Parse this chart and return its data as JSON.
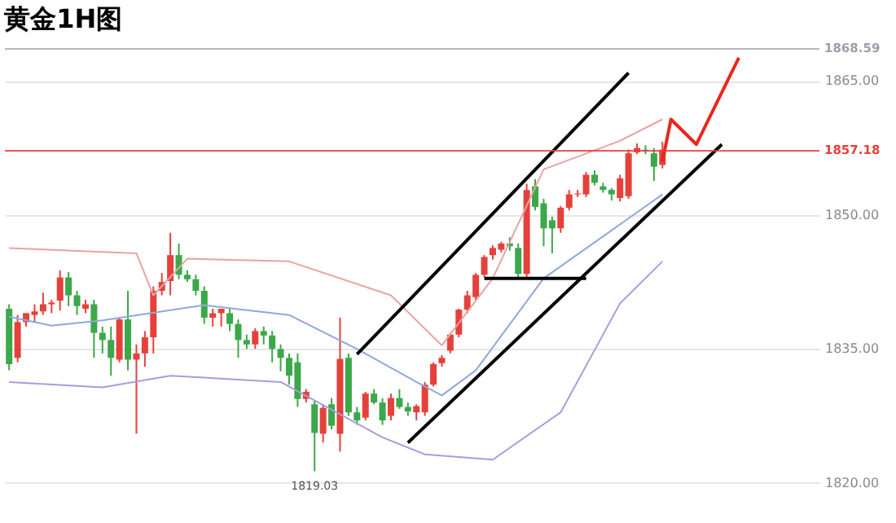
{
  "chart_data": {
    "type": "candlestick",
    "title": "黄金1H图",
    "categories": [
      null,
      null,
      null,
      null,
      null,
      null,
      null,
      null,
      null,
      null,
      null,
      null,
      null,
      null,
      null,
      null,
      null,
      null,
      null,
      null,
      null,
      null,
      null,
      null,
      null,
      null,
      null,
      null,
      null,
      null,
      null,
      null,
      null,
      null,
      null,
      null,
      null,
      null,
      null,
      null,
      null,
      null,
      null,
      null,
      null,
      null,
      null,
      null,
      null,
      null,
      null,
      null,
      null,
      null,
      null,
      null,
      null,
      null,
      null,
      null,
      null,
      null,
      null,
      null,
      null,
      null,
      null,
      null,
      null,
      null,
      null,
      null,
      null,
      null,
      null,
      null,
      null,
      null,
      null,
      null,
      null,
      null,
      null,
      null,
      null,
      null,
      null,
      null,
      null,
      null,
      null,
      null,
      null,
      null,
      null,
      null
    ],
    "ohlc": [
      [
        1839.5,
        1840,
        1832.6,
        1833.3
      ],
      [
        1834,
        1838.8,
        1833.5,
        1838
      ],
      [
        1838,
        1839,
        1837.5,
        1839
      ],
      [
        1838.8,
        1840,
        1838,
        1839.2
      ],
      [
        1839.2,
        1841.3,
        1838.8,
        1840
      ],
      [
        1840,
        1840.5,
        1839,
        1840.2
      ],
      [
        1840.4,
        1843.8,
        1839.3,
        1843
      ],
      [
        1843,
        1843.6,
        1839.8,
        1841
      ],
      [
        1841,
        1841.5,
        1838.8,
        1839.8
      ],
      [
        1839.5,
        1840.5,
        1839,
        1840
      ],
      [
        1840,
        1840.5,
        1834,
        1836.8
      ],
      [
        1836.8,
        1837.5,
        1834.5,
        1836
      ],
      [
        1836,
        1837.5,
        1832,
        1834
      ],
      [
        1833.8,
        1838.5,
        1833.5,
        1838.3
      ],
      [
        1838.3,
        1841.5,
        1832.6,
        1833.8
      ],
      [
        1833.8,
        1835.5,
        1825.5,
        1834.5
      ],
      [
        1834.5,
        1837,
        1833,
        1836.3
      ],
      [
        1836.3,
        1842,
        1834.5,
        1841.5
      ],
      [
        1841.5,
        1843.5,
        1841,
        1842.5
      ],
      [
        1842.6,
        1848,
        1841,
        1845.5
      ],
      [
        1845.5,
        1846.8,
        1842.8,
        1843.3
      ],
      [
        1843.3,
        1843.8,
        1842.5,
        1842.8
      ],
      [
        1842.8,
        1843.3,
        1841,
        1841.5
      ],
      [
        1841.5,
        1842,
        1837.8,
        1838.5
      ],
      [
        1838.5,
        1839.5,
        1837.5,
        1839
      ],
      [
        1839,
        1839.5,
        1837.5,
        1839.5
      ],
      [
        1839,
        1839.6,
        1837,
        1837.8
      ],
      [
        1837.8,
        1838.3,
        1834,
        1836
      ],
      [
        1836,
        1836.6,
        1835,
        1835.5
      ],
      [
        1835.5,
        1837.3,
        1835,
        1837
      ],
      [
        1837,
        1837.5,
        1835.5,
        1836.5
      ],
      [
        1836.5,
        1837,
        1833.5,
        1835
      ],
      [
        1835,
        1835.5,
        1832.5,
        1834
      ],
      [
        1834,
        1834.5,
        1831,
        1832
      ],
      [
        1833.5,
        1834.5,
        1828.5,
        1829.4
      ],
      [
        1829.4,
        1830.5,
        1829,
        1830.2
      ],
      [
        1828.8,
        1829.2,
        1821.3,
        1825.6
      ],
      [
        1825.5,
        1828.8,
        1824.5,
        1828.4
      ],
      [
        1828.8,
        1829.5,
        1826,
        1826.4
      ],
      [
        1825.5,
        1838.5,
        1823.5,
        1833.9
      ],
      [
        1834,
        1834.5,
        1827.5,
        1827.9
      ],
      [
        1827.9,
        1828.5,
        1826.5,
        1827
      ],
      [
        1827.3,
        1830.2,
        1827,
        1830
      ],
      [
        1830,
        1830.5,
        1828.8,
        1829
      ],
      [
        1829,
        1829.5,
        1826.5,
        1827
      ],
      [
        1827.5,
        1830,
        1827,
        1829.5
      ],
      [
        1829.5,
        1830.5,
        1828.3,
        1828.5
      ],
      [
        1828.5,
        1829,
        1827.5,
        1828
      ],
      [
        1827.9,
        1828.8,
        1827,
        1828.6
      ],
      [
        1827.9,
        1831.3,
        1827.5,
        1831
      ],
      [
        1831,
        1833.5,
        1830.8,
        1833.3
      ],
      [
        1833.4,
        1834.3,
        1833,
        1834
      ],
      [
        1834.8,
        1836.8,
        1834.5,
        1836.6
      ],
      [
        1836.6,
        1839.5,
        1836.3,
        1839.4
      ],
      [
        1839.4,
        1841.5,
        1839,
        1841
      ],
      [
        1840.8,
        1843.5,
        1840.5,
        1843.3
      ],
      [
        1843.3,
        1845.5,
        1843,
        1845.3
      ],
      [
        1845.5,
        1846.6,
        1845,
        1846.3
      ],
      [
        1846.1,
        1847,
        1845.8,
        1846.8
      ],
      [
        1846.8,
        1847.5,
        1846,
        1846.5
      ],
      [
        1846.3,
        1846.8,
        1843,
        1843.4
      ],
      [
        1843.4,
        1853.5,
        1843,
        1852.8
      ],
      [
        1853.2,
        1854,
        1850.5,
        1850.9
      ],
      [
        1851.3,
        1851.8,
        1846.5,
        1848.5
      ],
      [
        1849.4,
        1849.8,
        1845.7,
        1848.5
      ],
      [
        1848.5,
        1851,
        1848,
        1850.8
      ],
      [
        1850.8,
        1852.8,
        1850.5,
        1852.3
      ],
      [
        1852.3,
        1852.8,
        1852,
        1852.4
      ],
      [
        1852.3,
        1854.8,
        1852,
        1854.5
      ],
      [
        1854.5,
        1855,
        1853.3,
        1853.6
      ],
      [
        1853.2,
        1853.6,
        1852.5,
        1852.8
      ],
      [
        1852.8,
        1853,
        1851.6,
        1852.3
      ],
      [
        1851.9,
        1854.5,
        1851.5,
        1854.1
      ],
      [
        1852.1,
        1857.3,
        1851.8,
        1856.9
      ],
      [
        1857,
        1858,
        1856.8,
        1857.5
      ],
      [
        1857.3,
        1857.8,
        1856.8,
        1857.2
      ],
      [
        1856.9,
        1857.5,
        1853.8,
        1855.4
      ],
      [
        1855.6,
        1858.2,
        1855.2,
        1857.3
      ],
      null,
      null,
      null,
      null,
      null,
      null,
      null,
      null,
      null,
      null,
      null,
      null,
      null,
      null,
      null,
      null,
      null,
      null
    ],
    "colors": [
      "#3ba84a",
      "#e5413b",
      "#e5413b",
      "#e5413b",
      "#e5413b",
      "#e5413b",
      "#e5413b",
      "#3ba84a",
      "#3ba84a",
      "#e5413b",
      "#3ba84a",
      "#3ba84a",
      "#3ba84a",
      "#e5413b",
      "#3ba84a",
      "#e5413b",
      "#e5413b",
      "#e5413b",
      "#e5413b",
      "#e5413b",
      "#3ba84a",
      "#3ba84a",
      "#3ba84a",
      "#3ba84a",
      "#e5413b",
      "#e5413b",
      "#3ba84a",
      "#3ba84a",
      "#3ba84a",
      "#e5413b",
      "#3ba84a",
      "#3ba84a",
      "#3ba84a",
      "#3ba84a",
      "#3ba84a",
      "#e5413b",
      "#3ba84a",
      "#e5413b",
      "#3ba84a",
      "#e5413b",
      "#3ba84a",
      "#3ba84a",
      "#e5413b",
      "#3ba84a",
      "#3ba84a",
      "#e5413b",
      "#3ba84a",
      "#3ba84a",
      "#e5413b",
      "#e5413b",
      "#e5413b",
      "#e5413b",
      "#e5413b",
      "#e5413b",
      "#e5413b",
      "#e5413b",
      "#e5413b",
      "#e5413b",
      "#e5413b",
      "#3ba84a",
      "#3ba84a",
      "#e5413b",
      "#3ba84a",
      "#3ba84a",
      "#3ba84a",
      "#e5413b",
      "#e5413b",
      "#e5413b",
      "#e5413b",
      "#3ba84a",
      "#3ba84a",
      "#3ba84a",
      "#e5413b",
      "#e5413b",
      "#e5413b",
      "#3ba84a",
      "#3ba84a",
      "#e5413b",
      null,
      null,
      null,
      null,
      null,
      null,
      null,
      null,
      null,
      null,
      null,
      null,
      null,
      null,
      null,
      null,
      null,
      null
    ],
    "series": [
      {
        "type": "line",
        "color": "#e8a3a3",
        "values": [
          1846.3,
          null,
          null,
          null,
          null,
          null,
          null,
          null,
          null,
          null,
          null,
          null,
          null,
          null,
          null,
          1845.7,
          null,
          1841,
          null,
          null,
          null,
          1845.1,
          null,
          null,
          null,
          null,
          null,
          null,
          null,
          null,
          null,
          null,
          null,
          1844.8,
          null,
          null,
          null,
          null,
          null,
          null,
          null,
          null,
          null,
          null,
          null,
          1841,
          null,
          null,
          null,
          null,
          null,
          1835.4,
          null,
          null,
          null,
          null,
          null,
          1842.9,
          null,
          null,
          null,
          null,
          null,
          1855.1,
          null,
          null,
          null,
          null,
          null,
          null,
          null,
          null,
          1858.3,
          null,
          null,
          null,
          null,
          1860.7,
          null,
          null,
          null,
          null,
          null,
          null,
          null,
          null,
          null,
          null,
          null,
          null,
          null,
          null,
          null,
          null,
          null,
          null
        ]
      },
      {
        "type": "line",
        "color": "#8fa8dd",
        "values": [
          1838.6,
          null,
          null,
          null,
          null,
          1837.6,
          null,
          null,
          null,
          null,
          null,
          1838.2,
          null,
          null,
          null,
          null,
          null,
          null,
          null,
          null,
          null,
          null,
          null,
          1839.9,
          null,
          null,
          null,
          null,
          null,
          null,
          null,
          null,
          null,
          1838.8,
          null,
          null,
          null,
          null,
          null,
          null,
          null,
          1835,
          null,
          null,
          null,
          null,
          null,
          null,
          1831.3,
          null,
          null,
          1829.8,
          null,
          null,
          null,
          1832.6,
          null,
          null,
          null,
          null,
          null,
          null,
          null,
          1842.9,
          null,
          null,
          null,
          null,
          null,
          null,
          null,
          null,
          null,
          null,
          null,
          null,
          null,
          1852.3,
          null,
          null,
          null,
          null,
          null,
          null,
          null,
          null,
          null,
          null,
          null,
          null,
          null,
          null,
          null,
          null,
          null,
          null
        ]
      },
      {
        "type": "line",
        "color": "#a79ddc",
        "values": [
          1831.3,
          null,
          null,
          null,
          null,
          null,
          null,
          null,
          null,
          null,
          null,
          1830.7,
          null,
          null,
          null,
          null,
          null,
          null,
          null,
          1832,
          null,
          null,
          null,
          null,
          null,
          null,
          null,
          null,
          null,
          null,
          null,
          null,
          1831.3,
          null,
          null,
          null,
          null,
          null,
          null,
          null,
          null,
          null,
          null,
          null,
          1825.1,
          null,
          null,
          null,
          null,
          1823.2,
          null,
          null,
          null,
          null,
          null,
          null,
          null,
          1822.6,
          null,
          null,
          null,
          null,
          null,
          null,
          null,
          1827.9,
          null,
          null,
          null,
          null,
          null,
          null,
          1840.1,
          null,
          null,
          null,
          null,
          1844.8,
          null,
          null,
          null,
          null,
          null,
          null,
          null,
          null,
          null,
          null,
          null,
          null,
          null,
          null,
          null,
          null,
          null,
          null
        ]
      },
      {
        "type": "line",
        "color": "#000000",
        "values": [
          null,
          null,
          null,
          null,
          null,
          null,
          null,
          null,
          null,
          null,
          null,
          null,
          null,
          null,
          null,
          null,
          null,
          null,
          null,
          null,
          null,
          null,
          null,
          null,
          null,
          null,
          null,
          null,
          null,
          null,
          null,
          null,
          null,
          null,
          null,
          null,
          null,
          null,
          null,
          null,
          null,
          1834.4,
          null,
          null,
          null,
          null,
          null,
          null,
          null,
          null,
          null,
          null,
          null,
          null,
          null,
          null,
          null,
          null,
          null,
          null,
          null,
          null,
          null,
          null,
          null,
          null,
          null,
          null,
          null,
          null,
          null,
          null,
          null,
          1865.9,
          null,
          null,
          null,
          null,
          null,
          null,
          null,
          null,
          null,
          null,
          null,
          null,
          null,
          null,
          null,
          null,
          null,
          null,
          null,
          null,
          null,
          null
        ]
      },
      {
        "type": "line",
        "color": "#000000",
        "values": [
          null,
          null,
          null,
          null,
          null,
          null,
          null,
          null,
          null,
          null,
          null,
          null,
          null,
          null,
          null,
          null,
          null,
          null,
          null,
          null,
          null,
          null,
          null,
          null,
          null,
          null,
          null,
          null,
          null,
          null,
          null,
          null,
          null,
          null,
          null,
          null,
          null,
          null,
          null,
          null,
          null,
          null,
          null,
          null,
          null,
          null,
          null,
          1824.5,
          null,
          null,
          null,
          null,
          null,
          null,
          null,
          null,
          null,
          null,
          null,
          null,
          null,
          null,
          null,
          null,
          null,
          null,
          null,
          null,
          null,
          null,
          null,
          null,
          null,
          null,
          null,
          null,
          null,
          null,
          null,
          null,
          null,
          null,
          null,
          null,
          1857.9,
          null,
          null,
          null,
          null,
          null,
          null,
          null,
          null,
          null,
          null,
          null
        ]
      },
      {
        "type": "line",
        "color": "#000000",
        "values": [
          null,
          null,
          null,
          null,
          null,
          null,
          null,
          null,
          null,
          null,
          null,
          null,
          null,
          null,
          null,
          null,
          null,
          null,
          null,
          null,
          null,
          null,
          null,
          null,
          null,
          null,
          null,
          null,
          null,
          null,
          null,
          null,
          null,
          null,
          null,
          null,
          null,
          null,
          null,
          null,
          null,
          null,
          null,
          null,
          null,
          null,
          null,
          null,
          null,
          null,
          null,
          null,
          null,
          null,
          null,
          null,
          1842.9,
          null,
          null,
          null,
          null,
          null,
          null,
          null,
          null,
          null,
          null,
          null,
          1842.9,
          null,
          null,
          null,
          null,
          null,
          null,
          null,
          null,
          null,
          null,
          null,
          null,
          null,
          null,
          null,
          null,
          null,
          null,
          null,
          null,
          null,
          null,
          null,
          null,
          null,
          null,
          null
        ]
      },
      {
        "type": "line",
        "color": "#e8271e",
        "values": [
          null,
          null,
          null,
          null,
          null,
          null,
          null,
          null,
          null,
          null,
          null,
          null,
          null,
          null,
          null,
          null,
          null,
          null,
          null,
          null,
          null,
          null,
          null,
          null,
          null,
          null,
          null,
          null,
          null,
          null,
          null,
          null,
          null,
          null,
          null,
          null,
          null,
          null,
          null,
          null,
          null,
          null,
          null,
          null,
          null,
          null,
          null,
          null,
          null,
          null,
          null,
          null,
          null,
          null,
          null,
          null,
          null,
          null,
          null,
          null,
          null,
          null,
          null,
          null,
          null,
          null,
          null,
          null,
          null,
          null,
          null,
          null,
          null,
          null,
          null,
          null,
          null,
          1856,
          1860.7,
          null,
          null,
          1857.9,
          null,
          null,
          null,
          null,
          1867.6,
          null,
          null,
          null,
          null,
          null,
          null,
          null,
          null,
          null
        ]
      }
    ],
    "ylim": [
      1814.6,
      1868.59
    ],
    "yticks": [
      {
        "value": 1820,
        "label": "1820.00"
      },
      {
        "value": 1835,
        "label": "1835.00"
      },
      {
        "value": 1850,
        "label": "1850.00"
      },
      {
        "value": 1865,
        "label": "1865.00"
      }
    ],
    "ref_lines": [
      {
        "axis": "y",
        "value": 1868.59,
        "label": "1868.59",
        "color": "#9aa0aa"
      },
      {
        "axis": "y",
        "value": 1857.18,
        "label": "1857.18",
        "color": "#e5413b"
      }
    ],
    "annotations": [
      "1819.03"
    ],
    "grid": "y",
    "tick_labels": "y"
  }
}
